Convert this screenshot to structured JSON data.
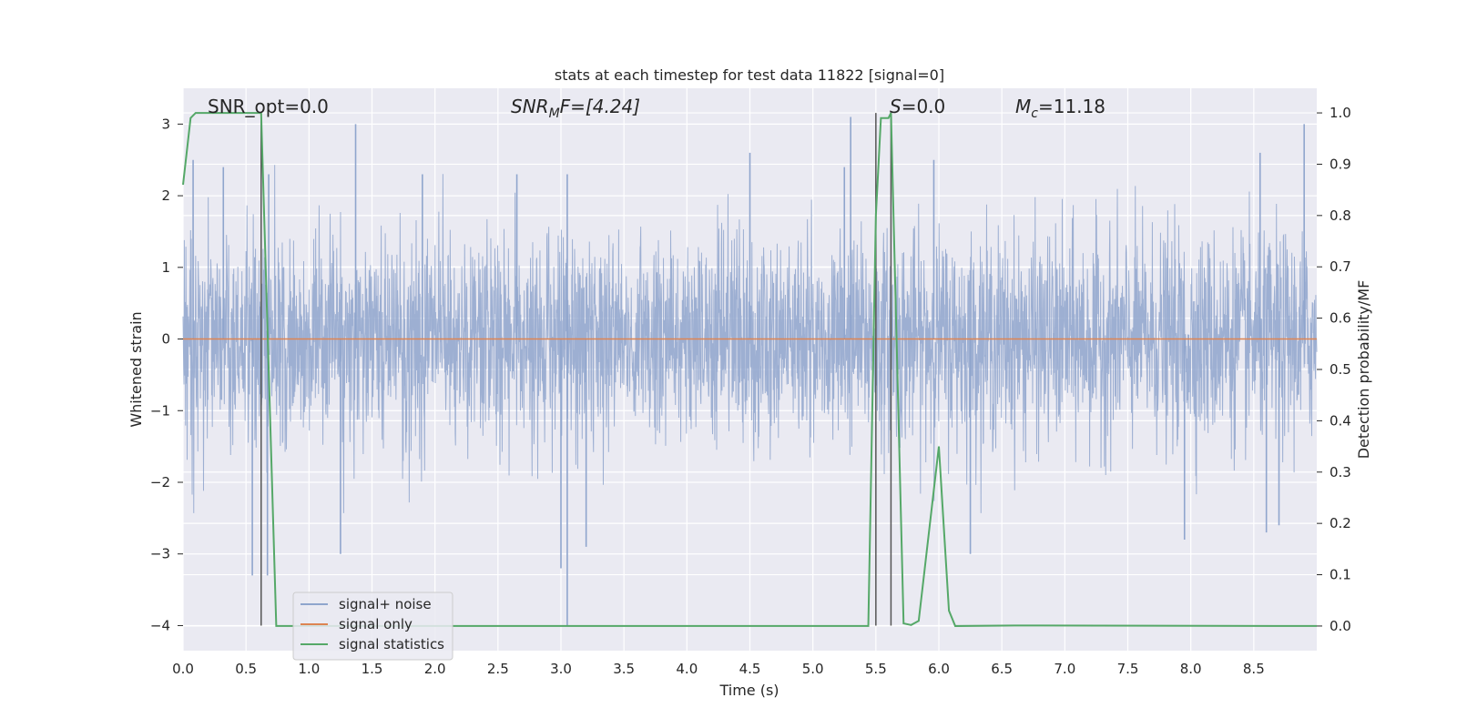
{
  "chart_data": {
    "type": "line",
    "title": "stats at each timestep for test data 11822 [signal=0]",
    "xlabel": "Time (s)",
    "ylabel_left": "Whitened strain",
    "ylabel_right": "Detection probability/MF",
    "xlim": [
      0.0,
      9.0
    ],
    "ylim_left": [
      -4.35,
      3.5
    ],
    "ylim_right": [
      -0.048,
      1.048
    ],
    "x_ticks": [
      "0.0",
      "0.5",
      "1.0",
      "1.5",
      "2.0",
      "2.5",
      "3.0",
      "3.5",
      "4.0",
      "4.5",
      "5.0",
      "5.5",
      "6.0",
      "6.5",
      "7.0",
      "7.5",
      "8.0",
      "8.5"
    ],
    "y_ticks_left": [
      "3",
      "2",
      "1",
      "0",
      "−1",
      "−2",
      "−3",
      "−4"
    ],
    "y_ticks_right": [
      "1.0",
      "0.9",
      "0.8",
      "0.7",
      "0.6",
      "0.5",
      "0.4",
      "0.3",
      "0.2",
      "0.1",
      "0.0"
    ],
    "grid": true,
    "annotations": {
      "snr_opt": "SNR_opt=0.0",
      "snr_mf_main": "SNR",
      "snr_mf_sub": "M",
      "snr_mf_rest": "F=[4.24]",
      "s_main": "S",
      "s_rest": "=0.0",
      "mc_main": "M",
      "mc_sub": "c",
      "mc_rest": "=11.18"
    },
    "vertical_markers_s": [
      0.62,
      5.5,
      5.62
    ],
    "legend": {
      "placement": "lower-left",
      "entries": [
        "signal+ noise",
        "signal only",
        "signal statistics"
      ]
    },
    "series": [
      {
        "name": "signal+ noise",
        "color": "#8fa5cd",
        "axis": "left",
        "description_values": "noise band roughly between -1.8 and 1.8, spikes up to 3.1 and down to -4.0",
        "typical_range": [
          -1.8,
          1.8
        ],
        "spikes_high": [
          [
            0.08,
            2.5
          ],
          [
            0.32,
            2.4
          ],
          [
            0.68,
            2.3
          ],
          [
            1.37,
            3.0
          ],
          [
            1.9,
            2.3
          ],
          [
            2.65,
            2.3
          ],
          [
            3.05,
            2.3
          ],
          [
            4.5,
            2.6
          ],
          [
            5.25,
            2.4
          ],
          [
            5.3,
            3.1
          ],
          [
            5.96,
            2.5
          ],
          [
            8.55,
            2.6
          ],
          [
            8.9,
            3.0
          ]
        ],
        "spikes_low": [
          [
            0.55,
            -3.3
          ],
          [
            0.67,
            -3.3
          ],
          [
            1.25,
            -3.0
          ],
          [
            3.0,
            -3.2
          ],
          [
            3.05,
            -4.0
          ],
          [
            3.2,
            -2.9
          ],
          [
            6.25,
            -3.0
          ],
          [
            7.95,
            -2.8
          ],
          [
            8.6,
            -2.7
          ],
          [
            8.7,
            -2.6
          ]
        ]
      },
      {
        "name": "signal only",
        "color": "#dd8452",
        "axis": "left",
        "x": [
          0.0,
          9.0
        ],
        "y": [
          0.0,
          0.0
        ]
      },
      {
        "name": "signal statistics",
        "color": "#55a868",
        "axis": "right",
        "x": [
          0.0,
          0.06,
          0.1,
          0.62,
          0.74,
          5.44,
          5.5,
          5.54,
          5.6,
          5.62,
          5.72,
          5.78,
          5.84,
          6.0,
          6.08,
          6.13,
          6.6,
          9.0
        ],
        "y": [
          0.86,
          0.99,
          1.0,
          1.0,
          0.0,
          0.0,
          0.8,
          0.99,
          0.99,
          1.0,
          0.005,
          0.002,
          0.01,
          0.35,
          0.03,
          0.0,
          0.001,
          0.0
        ]
      }
    ]
  }
}
